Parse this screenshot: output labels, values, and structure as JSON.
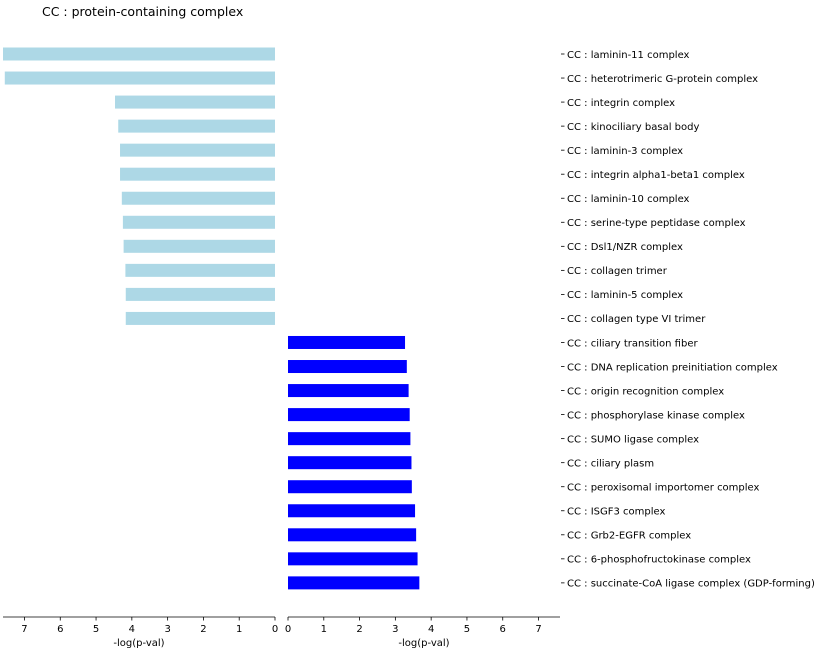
{
  "chart_data": {
    "type": "bar",
    "title": "CC : protein-containing complex",
    "orientation": "horizontal",
    "panels": [
      {
        "name": "left",
        "direction": "reversed",
        "xlabel": "-log(p-val)",
        "xlim": [
          0,
          7.6
        ],
        "ticks": [
          7,
          6,
          5,
          4,
          3,
          2,
          1,
          0
        ],
        "color": "#add8e6"
      },
      {
        "name": "right",
        "direction": "normal",
        "xlabel": "-log(p-val)",
        "xlim": [
          0,
          7.6
        ],
        "ticks": [
          0,
          1,
          2,
          3,
          4,
          5,
          6,
          7
        ],
        "color": "#0000ff"
      }
    ],
    "categories": [
      "CC : laminin-11 complex",
      "CC : heterotrimeric G-protein complex",
      "CC : integrin complex",
      "CC : kinociliary basal body",
      "CC : laminin-3 complex",
      "CC : integrin alpha1-beta1 complex",
      "CC : laminin-10 complex",
      "CC : serine-type peptidase complex",
      "CC : Dsl1/NZR complex",
      "CC : collagen trimer",
      "CC : laminin-5 complex",
      "CC : collagen type VI trimer",
      "CC : ciliary transition fiber",
      "CC : DNA replication preinitiation complex",
      "CC : origin recognition complex",
      "CC : phosphorylase kinase complex",
      "CC : SUMO ligase complex",
      "CC : ciliary plasm",
      "CC : peroxisomal importomer complex",
      "CC : ISGF3 complex",
      "CC : Grb2-EGFR complex",
      "CC : 6-phosphofructokinase complex",
      "CC : succinate-CoA ligase complex (GDP-forming)"
    ],
    "series": [
      {
        "panel": "left",
        "values": [
          7.6,
          7.55,
          4.47,
          4.38,
          4.33,
          4.33,
          4.28,
          4.25,
          4.23,
          4.18,
          4.17,
          4.17,
          null,
          null,
          null,
          null,
          null,
          null,
          null,
          null,
          null,
          null,
          null
        ]
      },
      {
        "panel": "right",
        "values": [
          null,
          null,
          null,
          null,
          null,
          null,
          null,
          null,
          null,
          null,
          null,
          null,
          3.27,
          3.32,
          3.37,
          3.4,
          3.42,
          3.45,
          3.46,
          3.55,
          3.58,
          3.62,
          3.67
        ]
      }
    ]
  }
}
